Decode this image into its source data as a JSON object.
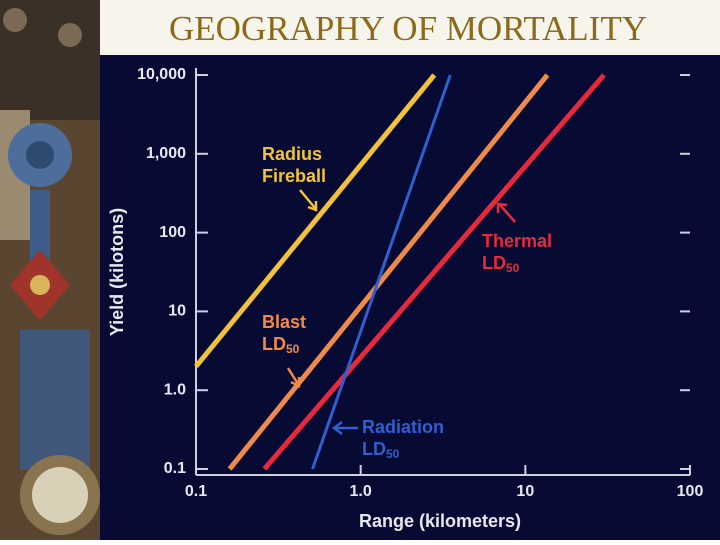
{
  "chart_data": {
    "type": "line",
    "title": "GEOGRAPHY OF MORTALITY",
    "x_label": "Range (kilometers)",
    "y_label": "Yield (kilotons)",
    "log_x": true,
    "log_y": true,
    "xlim": [
      0.1,
      100
    ],
    "ylim": [
      0.1,
      10000
    ],
    "xticks": [
      0.1,
      {
        "value": 1,
        "label": "1.0"
      },
      10,
      100
    ],
    "yticks": [
      0.1,
      {
        "value": 1,
        "label": "1.0"
      },
      10,
      100,
      {
        "value": 1000,
        "label": "1,000"
      },
      {
        "value": 10000,
        "label": "10,000"
      }
    ],
    "series": [
      {
        "label": {
          "lines": [
            "Radius",
            "Fireball"
          ]
        },
        "color": "#f2c23a",
        "x": [
          0.1,
          2.8
        ],
        "values": [
          2,
          10000
        ]
      },
      {
        "label": {
          "lines": [
            "Blast",
            "LD"
          ],
          "sub": "50"
        },
        "color": "#f08a4b",
        "x": [
          0.16,
          13.6
        ],
        "values": [
          0.1,
          10000
        ]
      },
      {
        "label": {
          "lines": [
            "Thermal",
            "LD"
          ],
          "sub": "50"
        },
        "color": "#e8283c",
        "x": [
          0.26,
          30
        ],
        "values": [
          0.1,
          10000
        ]
      },
      {
        "label": {
          "lines": [
            "Radiation",
            "LD"
          ],
          "sub": "50"
        },
        "color": "#2f5fd0",
        "x": [
          0.51,
          3.5
        ],
        "values": [
          0.1,
          10000
        ]
      }
    ]
  }
}
